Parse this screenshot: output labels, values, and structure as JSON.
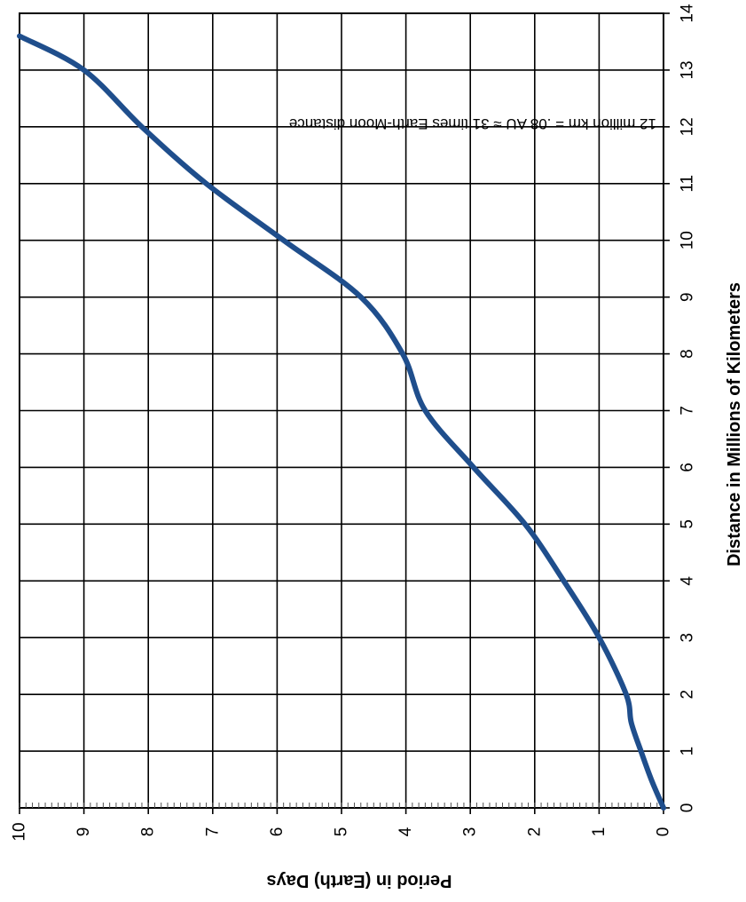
{
  "chart_data": {
    "type": "line",
    "orientation": "rotated-90",
    "title": "",
    "xlabel": "Distance in Millions of Kilometers",
    "ylabel": "Period in (Earth) Days",
    "xlim": [
      0,
      14
    ],
    "ylim": [
      0,
      10
    ],
    "x_ticks": [
      "0",
      "1",
      "2",
      "3",
      "4",
      "5",
      "6",
      "7",
      "8",
      "9",
      "10",
      "11",
      "12",
      "13",
      "14"
    ],
    "y_ticks": [
      "0",
      "1",
      "2",
      "3",
      "4",
      "5",
      "6",
      "7",
      "8",
      "9",
      "10"
    ],
    "grid": true,
    "legend": "none",
    "annotation": "12 million km = .08 AU ≈ 31 times Earth-Moon distance",
    "series": [
      {
        "color": "#1f4e8c",
        "x": [
          0,
          0.5,
          1,
          1.5,
          2,
          3,
          4,
          5,
          6,
          7,
          8,
          9,
          10,
          11,
          12,
          13,
          13.6
        ],
        "y": [
          0,
          0.19,
          0.35,
          0.5,
          0.58,
          1.0,
          1.55,
          2.15,
          2.95,
          3.7,
          4.05,
          4.7,
          5.9,
          7.1,
          8.1,
          9.0,
          10.0
        ]
      }
    ],
    "colors": {
      "grid": "#000000",
      "line": "#1f4e8c"
    }
  }
}
